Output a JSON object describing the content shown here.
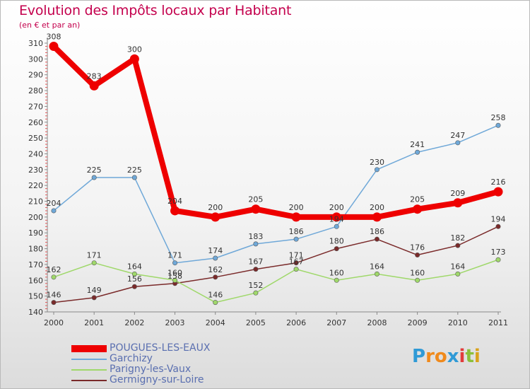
{
  "title": "Evolution des Impôts locaux par Habitant",
  "subtitle": "(en € et par an)",
  "logo": {
    "letters": [
      "P",
      "r",
      "o",
      "x",
      "i",
      "t",
      "i"
    ],
    "colors": [
      "#2f9ad6",
      "#f08a1c",
      "#f08a1c",
      "#2f9ad6",
      "#e23c3c",
      "#8bbf3a",
      "#d9a21b"
    ]
  },
  "chart_data": {
    "type": "line",
    "x": [
      "2000",
      "2001",
      "2002",
      "2003",
      "2004",
      "2005",
      "2006",
      "2007",
      "2008",
      "2009",
      "2010",
      "2011"
    ],
    "ylim": [
      140,
      310
    ],
    "yticks": [
      140,
      150,
      160,
      170,
      180,
      190,
      200,
      210,
      220,
      230,
      240,
      250,
      260,
      270,
      280,
      290,
      300,
      310
    ],
    "grid": false,
    "legend_position": "bottom-left",
    "series": [
      {
        "name": "POUGUES-LES-EAUX",
        "color": "#ee0000",
        "values": [
          308,
          283,
          300,
          204,
          200,
          205,
          200,
          200,
          200,
          205,
          209,
          216
        ],
        "labels": [
          "308",
          "283",
          "300",
          "204",
          "200",
          "205",
          "200",
          "200",
          "200",
          "205",
          "209",
          "216"
        ]
      },
      {
        "name": "Garchizy",
        "color": "#6fa8d8",
        "values": [
          204,
          225,
          225,
          171,
          174,
          183,
          186,
          194,
          230,
          241,
          247,
          258
        ],
        "labels": [
          "204",
          "225",
          "225",
          "171",
          "174",
          "183",
          "186",
          "194",
          "230",
          "241",
          "247",
          "258"
        ]
      },
      {
        "name": "Parigny-les-Vaux",
        "color": "#9fd86a",
        "values": [
          162,
          171,
          164,
          160,
          146,
          152,
          167,
          160,
          164,
          160,
          164,
          173
        ],
        "labels": [
          "162",
          "171",
          "164",
          "160",
          "146",
          "152",
          "167",
          "160",
          "164",
          "160",
          "164",
          "173"
        ]
      },
      {
        "name": "Germigny-sur-Loire",
        "color": "#7a2a2a",
        "values": [
          146,
          149,
          156,
          158,
          162,
          167,
          171,
          180,
          186,
          176,
          182,
          194
        ],
        "labels": [
          "146",
          "149",
          "156",
          "158",
          "162",
          "167",
          "171",
          "180",
          "186",
          "176",
          "182",
          "194"
        ]
      }
    ]
  }
}
